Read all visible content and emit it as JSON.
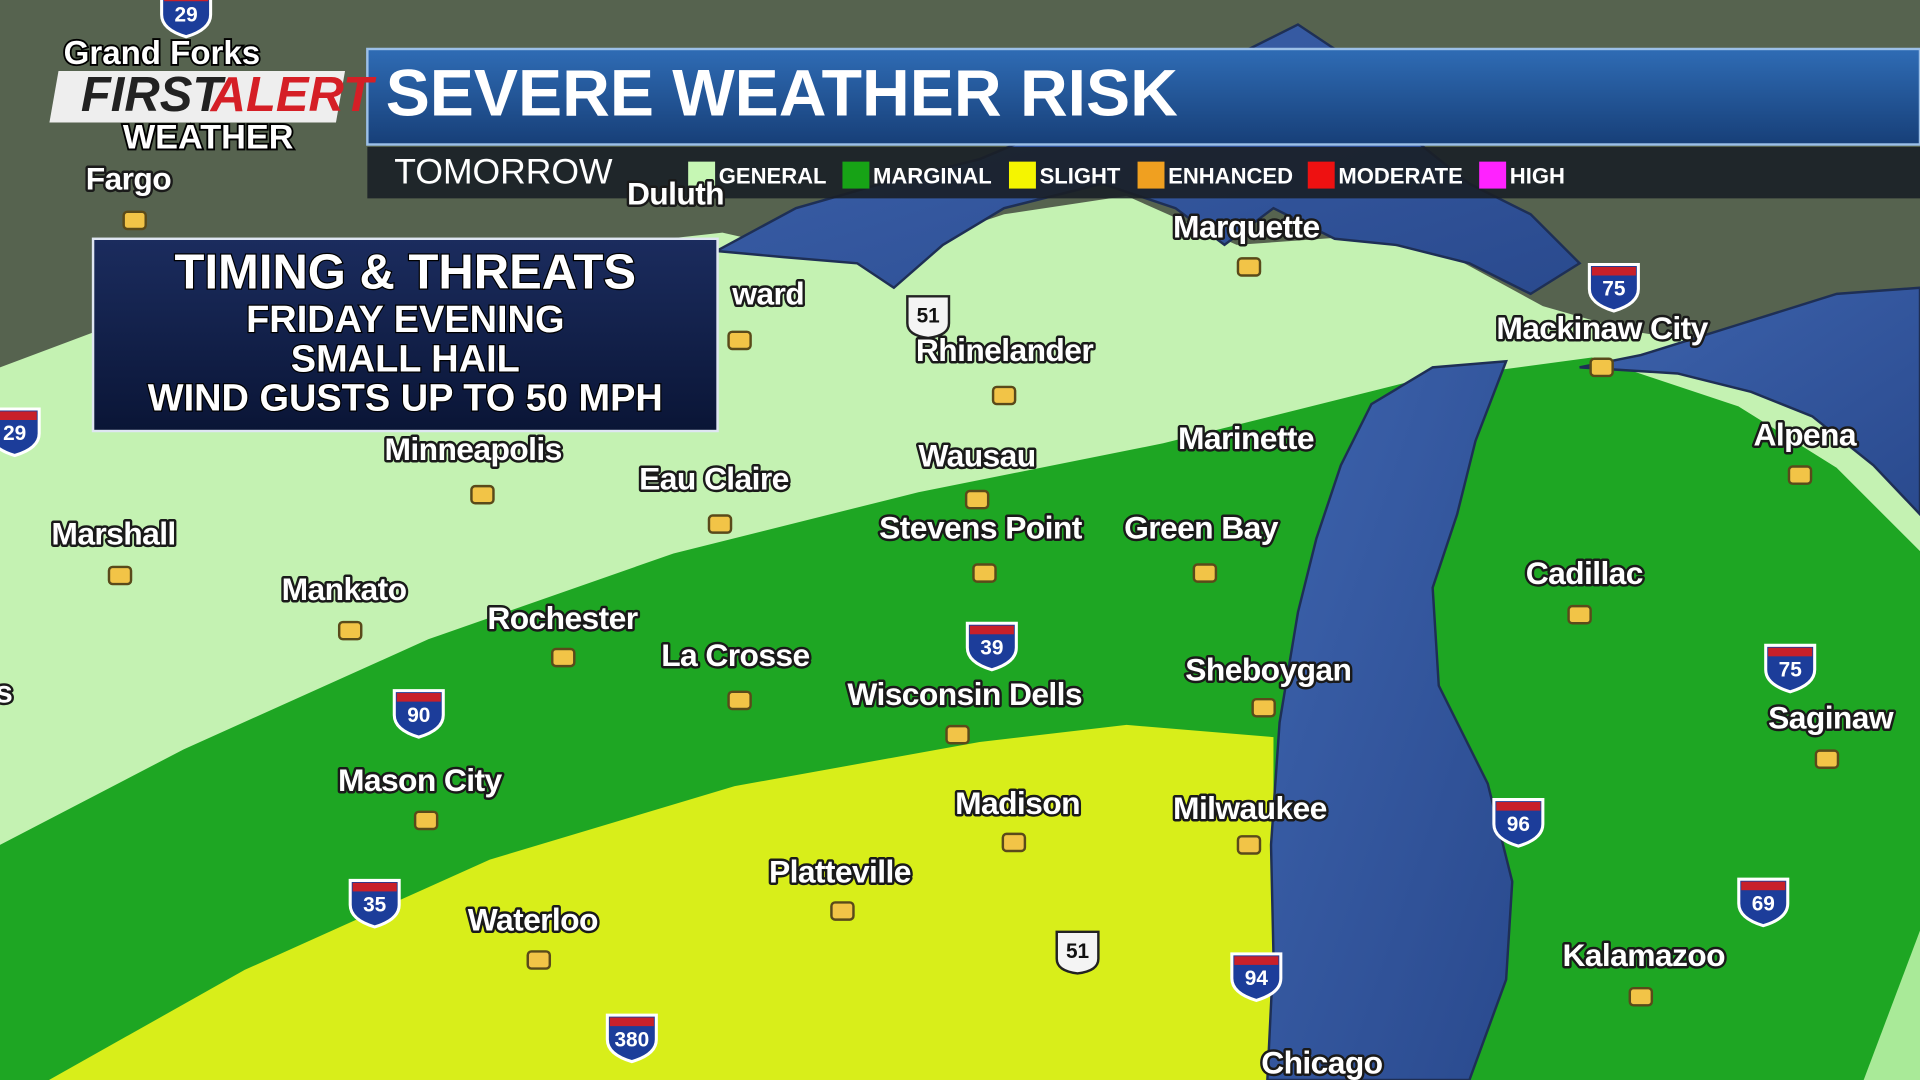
{
  "logo": {
    "location": "Grand Forks",
    "brand_1": "FIRST",
    "brand_2": "ALERT",
    "product": "WEATHER"
  },
  "header": {
    "title": "SEVERE WEATHER RISK",
    "period": "TOMORROW"
  },
  "legend": [
    {
      "label": "GENERAL",
      "color": "#c6f7b4"
    },
    {
      "label": "MARGINAL",
      "color": "#17a316"
    },
    {
      "label": "SLIGHT",
      "color": "#f5f500"
    },
    {
      "label": "ENHANCED",
      "color": "#f0a020"
    },
    {
      "label": "MODERATE",
      "color": "#ee1111"
    },
    {
      "label": "HIGH",
      "color": "#ff22ff"
    }
  ],
  "info_box": {
    "title": "TIMING & THREATS",
    "lines": [
      "FRIDAY EVENING",
      "SMALL HAIL",
      "WIND GUSTS UP TO 50 MPH"
    ]
  },
  "cities": [
    "Fargo",
    "Duluth",
    "ward",
    "Rhinelander",
    "Marquette",
    "Mackinaw City",
    "Alpena",
    "Marinette",
    "Minneapolis",
    "Eau Claire",
    "Wausau",
    "Stevens Point",
    "Green Bay",
    "Marshall",
    "Cadillac",
    "Mankato",
    "Rochester",
    "La Crosse",
    "Sheboygan",
    "Wisconsin Dells",
    "Saginaw",
    "s",
    "Mason City",
    "Madison",
    "Milwaukee",
    "Platteville",
    "Waterloo",
    "Kalamazoo",
    "Chicago"
  ],
  "highway_shields": [
    "29",
    "51",
    "75",
    "29",
    "90",
    "39",
    "75",
    "96",
    "69",
    "35",
    "51",
    "94",
    "380"
  ]
}
